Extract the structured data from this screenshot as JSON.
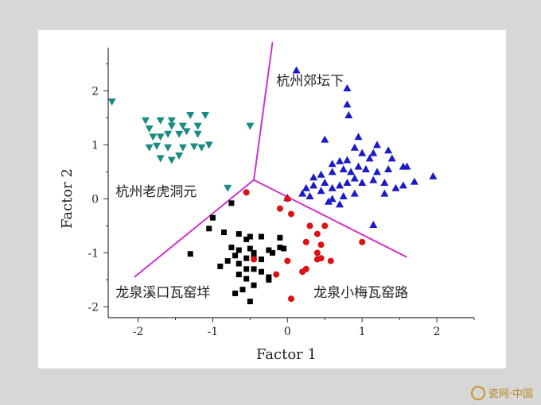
{
  "watermark": {
    "text": "瓷网·中国",
    "icon": "vase-logo-icon"
  },
  "chart_data": {
    "type": "scatter",
    "title": "",
    "xlabel": "Factor 1",
    "ylabel": "Factor 2",
    "xlim": [
      -2.4,
      2.5
    ],
    "ylim": [
      -2.2,
      2.8
    ],
    "xticks": [
      -2,
      -1,
      0,
      1,
      2
    ],
    "yticks": [
      -2,
      -1,
      0,
      1,
      2
    ],
    "grid": false,
    "colors": {
      "axis": "#333333",
      "boundary": "#cc33cc",
      "teal": "#1a8a84",
      "blue": "#1a1ac8",
      "black": "#000000",
      "red": "#dd1111"
    },
    "boundaries": {
      "center": [
        -0.45,
        0.35
      ],
      "ends": [
        [
          -0.2,
          2.9
        ],
        [
          -2.05,
          -1.45
        ],
        [
          1.6,
          -1.08
        ]
      ]
    },
    "region_labels": [
      {
        "text": "杭州郊坛下",
        "x": -0.15,
        "y": 2.1
      },
      {
        "text": "杭州老虎洞元",
        "x": -2.3,
        "y": 0.05
      },
      {
        "text": "龙泉溪口瓦窑垟",
        "x": -2.3,
        "y": -1.82
      },
      {
        "text": "龙泉小梅瓦窑路",
        "x": 0.35,
        "y": -1.82
      }
    ],
    "series": [
      {
        "marker": "triangle-down",
        "color": "teal",
        "points": [
          [
            -2.35,
            1.8
          ],
          [
            -1.9,
            1.45
          ],
          [
            -1.7,
            1.45
          ],
          [
            -1.55,
            1.45
          ],
          [
            -1.3,
            1.55
          ],
          [
            -1.1,
            1.55
          ],
          [
            -1.85,
            1.3
          ],
          [
            -1.55,
            1.35
          ],
          [
            -1.4,
            1.35
          ],
          [
            -1.2,
            1.35
          ],
          [
            -1.8,
            1.15
          ],
          [
            -1.7,
            1.15
          ],
          [
            -1.6,
            1.2
          ],
          [
            -1.45,
            1.2
          ],
          [
            -1.35,
            1.25
          ],
          [
            -1.2,
            1.2
          ],
          [
            -1.85,
            0.95
          ],
          [
            -1.75,
            0.98
          ],
          [
            -1.6,
            0.95
          ],
          [
            -1.4,
            0.95
          ],
          [
            -1.25,
            0.97
          ],
          [
            -1.15,
            0.95
          ],
          [
            -1.05,
            1.0
          ],
          [
            -1.7,
            0.75
          ],
          [
            -1.55,
            0.72
          ],
          [
            -1.45,
            0.8
          ],
          [
            -0.5,
            1.35
          ],
          [
            -0.8,
            0.2
          ]
        ]
      },
      {
        "marker": "triangle-up",
        "color": "blue",
        "points": [
          [
            0.12,
            2.38
          ],
          [
            0.8,
            2.05
          ],
          [
            0.8,
            1.75
          ],
          [
            0.82,
            1.55
          ],
          [
            0.5,
            1.1
          ],
          [
            0.95,
            1.15
          ],
          [
            1.2,
            1.0
          ],
          [
            1.35,
            0.9
          ],
          [
            1.0,
            0.85
          ],
          [
            0.9,
            0.95
          ],
          [
            1.15,
            0.85
          ],
          [
            1.1,
            0.75
          ],
          [
            0.8,
            0.72
          ],
          [
            0.6,
            0.65
          ],
          [
            0.7,
            0.7
          ],
          [
            1.4,
            0.75
          ],
          [
            1.55,
            0.6
          ],
          [
            1.6,
            0.6
          ],
          [
            1.35,
            0.55
          ],
          [
            1.2,
            0.5
          ],
          [
            1.05,
            0.55
          ],
          [
            0.95,
            0.6
          ],
          [
            0.85,
            0.5
          ],
          [
            0.75,
            0.55
          ],
          [
            0.6,
            0.5
          ],
          [
            0.45,
            0.45
          ],
          [
            0.35,
            0.4
          ],
          [
            1.95,
            0.42
          ],
          [
            1.7,
            0.32
          ],
          [
            1.55,
            0.25
          ],
          [
            1.45,
            0.2
          ],
          [
            1.3,
            0.3
          ],
          [
            1.15,
            0.35
          ],
          [
            1.0,
            0.3
          ],
          [
            0.9,
            0.38
          ],
          [
            0.8,
            0.3
          ],
          [
            0.7,
            0.25
          ],
          [
            0.6,
            0.2
          ],
          [
            0.5,
            0.3
          ],
          [
            0.45,
            0.15
          ],
          [
            0.35,
            0.25
          ],
          [
            0.25,
            0.2
          ],
          [
            0.2,
            0.1
          ],
          [
            0.3,
            0.05
          ],
          [
            0.0,
            0.02
          ],
          [
            0.6,
            0.0
          ],
          [
            0.75,
            0.05
          ],
          [
            0.9,
            0.1
          ],
          [
            1.3,
            0.1
          ],
          [
            0.7,
            -0.1
          ],
          [
            0.55,
            -0.05
          ],
          [
            1.15,
            -0.48
          ]
        ]
      },
      {
        "marker": "square",
        "color": "black",
        "points": [
          [
            -0.75,
            -0.08
          ],
          [
            -1.0,
            -0.35
          ],
          [
            -1.05,
            -0.55
          ],
          [
            -1.3,
            -1.02
          ],
          [
            -0.85,
            -0.62
          ],
          [
            -0.65,
            -0.65
          ],
          [
            -0.55,
            -0.75
          ],
          [
            -0.5,
            -0.7
          ],
          [
            -0.35,
            -0.7
          ],
          [
            -0.1,
            -0.72
          ],
          [
            -0.75,
            -0.9
          ],
          [
            -0.65,
            -0.95
          ],
          [
            -0.5,
            -0.92
          ],
          [
            -0.45,
            -1.0
          ],
          [
            -0.25,
            -0.95
          ],
          [
            -0.1,
            -0.9
          ],
          [
            -0.7,
            -1.05
          ],
          [
            -0.55,
            -1.1
          ],
          [
            -0.45,
            -1.1
          ],
          [
            -0.35,
            -1.12
          ],
          [
            -0.2,
            -1.0
          ],
          [
            -0.05,
            -0.92
          ],
          [
            -0.9,
            -1.25
          ],
          [
            -0.8,
            -1.15
          ],
          [
            -0.65,
            -1.2
          ],
          [
            -0.55,
            -1.3
          ],
          [
            -0.45,
            -1.3
          ],
          [
            -0.35,
            -1.35
          ],
          [
            -0.25,
            -1.45
          ],
          [
            -0.65,
            -1.4
          ],
          [
            -0.55,
            -1.48
          ],
          [
            -0.45,
            -1.6
          ],
          [
            -0.6,
            -1.68
          ],
          [
            -0.7,
            -1.75
          ],
          [
            -0.5,
            -1.9
          ],
          [
            -0.25,
            -1.5
          ]
        ]
      },
      {
        "marker": "circle",
        "color": "red",
        "points": [
          [
            -0.55,
            0.12
          ],
          [
            -0.1,
            -0.18
          ],
          [
            0.05,
            -0.28
          ],
          [
            0.0,
            0.0
          ],
          [
            0.3,
            -0.5
          ],
          [
            0.5,
            -0.5
          ],
          [
            0.4,
            -0.65
          ],
          [
            1.0,
            -0.8
          ],
          [
            0.25,
            -0.8
          ],
          [
            0.45,
            -0.85
          ],
          [
            0.4,
            -1.0
          ],
          [
            0.58,
            -1.15
          ],
          [
            0.45,
            -1.1
          ],
          [
            0.4,
            -1.12
          ],
          [
            0.0,
            -1.15
          ],
          [
            0.2,
            -1.35
          ],
          [
            0.25,
            -1.3
          ],
          [
            -0.45,
            -1.12
          ],
          [
            -0.15,
            -1.4
          ],
          [
            0.05,
            -1.85
          ]
        ]
      }
    ]
  }
}
